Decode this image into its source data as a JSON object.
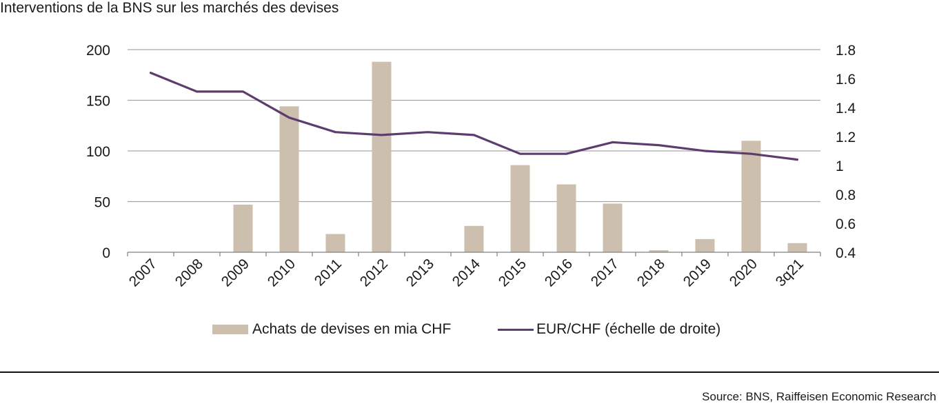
{
  "title": "Interventions de la BNS sur les marchés des devises",
  "source": "Source: BNS, Raiffeisen Economic Research",
  "colors": {
    "bar": "#cdbfae",
    "line": "#5c3d6e",
    "grid": "#a6a6a6",
    "axis": "#7f7f7f"
  },
  "chart_data": {
    "type": "bar",
    "categories": [
      "2007",
      "2008",
      "2009",
      "2010",
      "2011",
      "2012",
      "2013",
      "2014",
      "2015",
      "2016",
      "2017",
      "2018",
      "2019",
      "2020",
      "3q21"
    ],
    "series": [
      {
        "name": "Achats de devises en mia CHF",
        "type": "bar",
        "axis": "left",
        "values": [
          0,
          0,
          47,
          144,
          18,
          188,
          0,
          26,
          86,
          67,
          48,
          2,
          13,
          110,
          9
        ]
      },
      {
        "name": "EUR/CHF (échelle de droite)",
        "type": "line",
        "axis": "right",
        "values": [
          1.64,
          1.51,
          1.51,
          1.33,
          1.23,
          1.21,
          1.23,
          1.21,
          1.08,
          1.08,
          1.16,
          1.14,
          1.1,
          1.08,
          1.04
        ]
      }
    ],
    "left_axis": {
      "ylim": [
        0,
        200
      ],
      "ticks": [
        0,
        50,
        100,
        150,
        200
      ],
      "tick_labels": [
        "0",
        "50",
        "100",
        "150",
        "200"
      ]
    },
    "right_axis": {
      "ylim": [
        0.4,
        1.8
      ],
      "ticks": [
        0.4,
        0.6,
        0.8,
        1.0,
        1.2,
        1.4,
        1.6,
        1.8
      ],
      "tick_labels": [
        "0.4",
        "0.6",
        "0.8",
        "1",
        "1.2",
        "1.4",
        "1.6",
        "1.8"
      ]
    },
    "grid": true,
    "legend_position": "bottom"
  }
}
